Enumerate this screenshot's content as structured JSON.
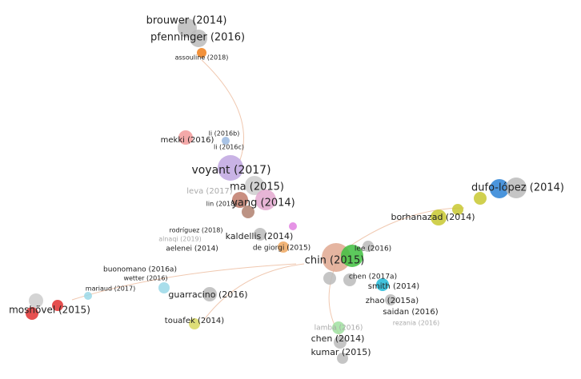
{
  "nodes": [
    {
      "label": "brouwer (2014)"
    },
    {
      "label": "pfenninger (2016)"
    },
    {
      "label": "assouline (2018)"
    },
    {
      "label": "li (2016b)"
    },
    {
      "label": "mekki (2016)"
    },
    {
      "label": "li (2016c)"
    },
    {
      "label": "voyant (2017)"
    },
    {
      "label": "ma (2015)"
    },
    {
      "label": "leva (2017)"
    },
    {
      "label": "yang (2014)"
    },
    {
      "label": "lin (2018)"
    },
    {
      "label": "dufo-lópez (2014)"
    },
    {
      "label": "borhanazad (2014)"
    },
    {
      "label": "rodríguez (2018)"
    },
    {
      "label": "alnaqi (2019)"
    },
    {
      "label": "kaldellis (2014)"
    },
    {
      "label": "aelenei (2014)"
    },
    {
      "label": "de giorgi (2015)"
    },
    {
      "label": "chin (2015)"
    },
    {
      "label": "lee (2016)"
    },
    {
      "label": "buonomano (2016a)"
    },
    {
      "label": "wetter (2016)"
    },
    {
      "label": "chen (2017a)"
    },
    {
      "label": "mariaud (2017)"
    },
    {
      "label": "smith (2014)"
    },
    {
      "label": "guarracino (2016)"
    },
    {
      "label": "zhao (2015a)"
    },
    {
      "label": "moshövel (2015)"
    },
    {
      "label": "saidan (2016)"
    },
    {
      "label": "touafek (2014)"
    },
    {
      "label": "rezania (2016)"
    },
    {
      "label": "lamba (2016)"
    },
    {
      "label": "chen (2014)"
    },
    {
      "label": "kumar (2015)"
    }
  ]
}
